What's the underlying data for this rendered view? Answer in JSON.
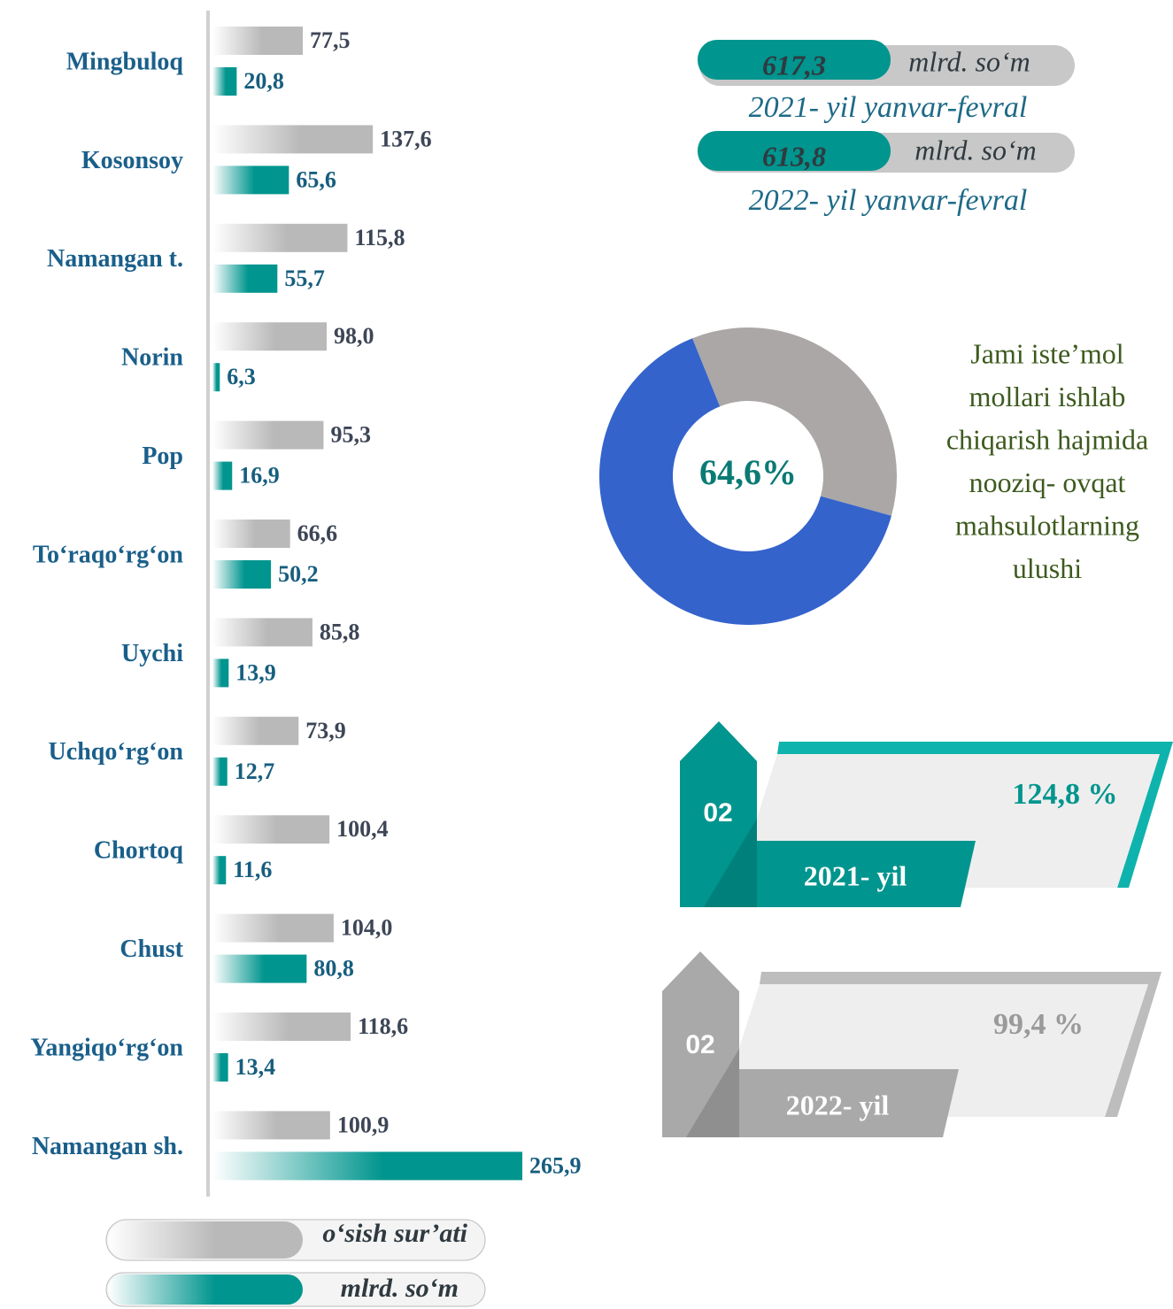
{
  "chart_data": [
    {
      "type": "bar",
      "categories": [
        "Mingbuloq",
        "Kosonsoy",
        "Namangan t.",
        "Norin",
        "Pop",
        "To‘raqo‘rg‘on",
        "Uychi",
        "Uchqo‘rg‘on",
        "Chortoq",
        "Chust",
        "Yangiqo‘rg‘on",
        "Namangan sh."
      ],
      "series": [
        {
          "name": "o‘sish sur’ati",
          "color": "#b9b9b9",
          "values": [
            77.5,
            137.6,
            115.8,
            98.0,
            95.3,
            66.6,
            85.8,
            73.9,
            100.4,
            104.0,
            118.6,
            100.9
          ],
          "value_labels": [
            "77,5",
            "137,6",
            "115,8",
            "98,0",
            "95,3",
            "66,6",
            "85,8",
            "73,9",
            "100,4",
            "104,0",
            "118,6",
            "100,9"
          ]
        },
        {
          "name": "mlrd. so‘m",
          "color": "#00958e",
          "values": [
            20.8,
            65.6,
            55.7,
            6.3,
            16.9,
            50.2,
            13.9,
            12.7,
            11.6,
            80.8,
            13.4,
            265.9
          ],
          "value_labels": [
            "20,8",
            "65,6",
            "55,7",
            "6,3",
            "16,9",
            "50,2",
            "13,9",
            "12,7",
            "11,6",
            "80,8",
            "13,4",
            "265,9"
          ]
        }
      ]
    },
    {
      "type": "pie",
      "values": [
        64.6,
        35.4
      ],
      "colors": [
        "#3563cc",
        "#aba7a7"
      ],
      "value_labels": [
        "64,6%",
        null
      ],
      "caption": [
        "Jami iste’mol",
        "mollari ishlab",
        "chiqarish hajmida",
        "nooziq- ovqat",
        "mahsulotlarning",
        "ulushi"
      ]
    }
  ],
  "totals": [
    {
      "value": "617,3",
      "unit": "mlrd. so‘m",
      "period": "2021- yil yanvar-fevral"
    },
    {
      "value": "613,8",
      "unit": "mlrd. so‘m",
      "period": "2022- yil yanvar-fevral"
    }
  ],
  "growth": [
    {
      "badge": "02",
      "value": "124,8 %",
      "year": "2021- yil"
    },
    {
      "badge": "02",
      "value": "99,4 %",
      "year": "2022- yil"
    }
  ]
}
